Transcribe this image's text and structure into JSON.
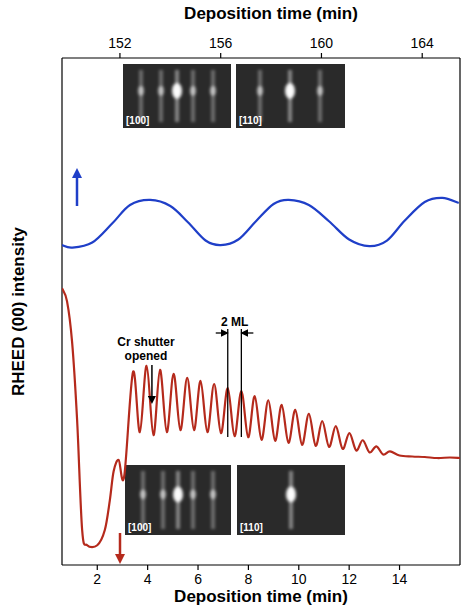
{
  "chart_data": {
    "type": "line",
    "x_label": "Deposition time (min)",
    "x2_label": "Deposition time (min)",
    "y_label": "RHEED (00) intensity",
    "xlim": [
      0.6,
      16.4
    ],
    "xticks": [
      2,
      4,
      6,
      8,
      10,
      12,
      14
    ],
    "x2lim": [
      149.7,
      165.5
    ],
    "x2ticks": [
      152,
      156,
      160,
      164
    ],
    "ylim": [
      0,
      100
    ],
    "yticks": [],
    "tick_labels": "x",
    "grid": false,
    "series": [
      {
        "color": "#b52a1c",
        "line_style": "solid",
        "x": [
          0.6,
          0.8,
          1.0,
          1.2,
          1.4,
          1.6,
          2.0,
          2.3,
          2.5,
          2.65,
          2.85,
          3.07,
          3.42,
          3.69,
          3.96,
          4.23,
          4.49,
          4.76,
          5.03,
          5.3,
          5.57,
          5.84,
          6.1,
          6.37,
          6.64,
          6.91,
          7.18,
          7.45,
          7.72,
          7.99,
          8.25,
          8.52,
          8.79,
          9.06,
          9.32,
          9.59,
          9.86,
          10.13,
          10.4,
          10.67,
          10.93,
          11.2,
          11.47,
          11.74,
          12.01,
          12.28,
          12.54,
          12.81,
          13.08,
          13.35,
          13.62,
          14.0,
          14.5,
          15.0,
          15.5,
          16.0,
          16.4
        ],
        "values": [
          54.6,
          52.0,
          44.0,
          28.6,
          6.9,
          3.9,
          3.9,
          6.9,
          12.8,
          18.5,
          20.7,
          17.5,
          38.1,
          26.2,
          39.3,
          25.6,
          38.5,
          26.2,
          37.7,
          26.6,
          36.9,
          26.6,
          36.3,
          26.2,
          35.7,
          26.0,
          34.9,
          25.4,
          34.3,
          25.2,
          33.3,
          24.7,
          32.5,
          24.5,
          31.6,
          24.1,
          30.6,
          23.7,
          29.8,
          23.5,
          28.4,
          23.3,
          27.4,
          22.9,
          26.0,
          22.6,
          24.6,
          22.2,
          23.4,
          21.8,
          22.4,
          21.6,
          21.4,
          21.3,
          21.1,
          21.2,
          21.1
        ]
      },
      {
        "color": "#1f3fc8",
        "line_style": "solid",
        "axis": "x2",
        "x": [
          149.7,
          150.1,
          150.9,
          151.7,
          152.4,
          153.2,
          154.0,
          154.7,
          155.4,
          156.0,
          156.7,
          157.4,
          158.1,
          158.7,
          159.5,
          160.3,
          161.1,
          161.9,
          162.6,
          163.3,
          164.1,
          164.8,
          165.45
        ],
        "values": [
          63.1,
          62.6,
          63.6,
          67.4,
          71.0,
          72.0,
          70.8,
          67.6,
          64.0,
          63.1,
          64.2,
          67.8,
          71.2,
          72.0,
          71.0,
          67.8,
          64.2,
          62.9,
          64.0,
          67.9,
          71.6,
          72.4,
          71.4
        ]
      }
    ],
    "annotations": [
      {
        "text": "Cr shutter opened",
        "x": 4.17
      },
      {
        "text": "2 ML",
        "x": [
          7.18,
          7.72
        ]
      }
    ],
    "insets": [
      {
        "label": "[100]"
      },
      {
        "label": "[110]"
      },
      {
        "label": "[100]"
      },
      {
        "label": "[110]"
      }
    ]
  }
}
